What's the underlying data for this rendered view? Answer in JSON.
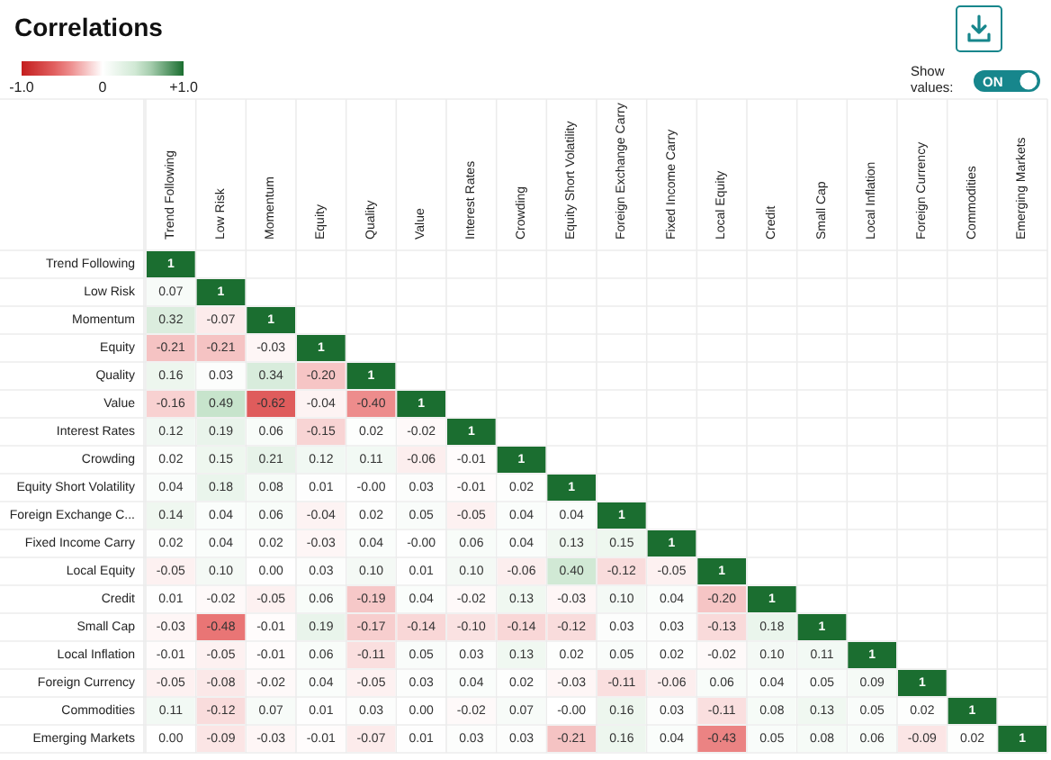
{
  "chart_data": {
    "type": "heatmap",
    "title": "Correlations",
    "categories": [
      "Trend Following",
      "Low Risk",
      "Momentum",
      "Equity",
      "Quality",
      "Value",
      "Interest Rates",
      "Crowding",
      "Equity Short Volatility",
      "Foreign Exchange Carry",
      "Fixed Income Carry",
      "Local Equity",
      "Credit",
      "Small Cap",
      "Local Inflation",
      "Foreign Currency",
      "Commodities",
      "Emerging Markets"
    ],
    "y_categories": [
      "Trend Following",
      "Low Risk",
      "Momentum",
      "Equity",
      "Quality",
      "Value",
      "Interest Rates",
      "Crowding",
      "Equity Short Volatility",
      "Foreign Exchange C...",
      "Fixed Income Carry",
      "Local Equity",
      "Credit",
      "Small Cap",
      "Local Inflation",
      "Foreign Currency",
      "Commodities",
      "Emerging Markets"
    ],
    "cells": [
      [
        1,
        null,
        null,
        null,
        null,
        null,
        null,
        null,
        null,
        null,
        null,
        null,
        null,
        null,
        null,
        null,
        null,
        null
      ],
      [
        0.07,
        1,
        null,
        null,
        null,
        null,
        null,
        null,
        null,
        null,
        null,
        null,
        null,
        null,
        null,
        null,
        null,
        null
      ],
      [
        0.32,
        -0.07,
        1,
        null,
        null,
        null,
        null,
        null,
        null,
        null,
        null,
        null,
        null,
        null,
        null,
        null,
        null,
        null
      ],
      [
        -0.21,
        -0.21,
        -0.03,
        1,
        null,
        null,
        null,
        null,
        null,
        null,
        null,
        null,
        null,
        null,
        null,
        null,
        null,
        null
      ],
      [
        0.16,
        0.03,
        0.34,
        -0.2,
        1,
        null,
        null,
        null,
        null,
        null,
        null,
        null,
        null,
        null,
        null,
        null,
        null,
        null
      ],
      [
        -0.16,
        0.49,
        -0.62,
        -0.04,
        -0.4,
        1,
        null,
        null,
        null,
        null,
        null,
        null,
        null,
        null,
        null,
        null,
        null,
        null
      ],
      [
        0.12,
        0.19,
        0.06,
        -0.15,
        0.02,
        -0.02,
        1,
        null,
        null,
        null,
        null,
        null,
        null,
        null,
        null,
        null,
        null,
        null
      ],
      [
        0.02,
        0.15,
        0.21,
        0.12,
        0.11,
        -0.06,
        -0.01,
        1,
        null,
        null,
        null,
        null,
        null,
        null,
        null,
        null,
        null,
        null
      ],
      [
        0.04,
        0.18,
        0.08,
        0.01,
        0,
        0.03,
        -0.01,
        0.02,
        1,
        null,
        null,
        null,
        null,
        null,
        null,
        null,
        null,
        null
      ],
      [
        0.14,
        0.04,
        0.06,
        -0.04,
        0.02,
        0.05,
        -0.05,
        0.04,
        0.04,
        1,
        null,
        null,
        null,
        null,
        null,
        null,
        null,
        null
      ],
      [
        0.02,
        0.04,
        0.02,
        -0.03,
        0.04,
        0,
        0.06,
        0.04,
        0.13,
        0.15,
        1,
        null,
        null,
        null,
        null,
        null,
        null,
        null
      ],
      [
        -0.05,
        0.1,
        0,
        0.03,
        0.1,
        0.01,
        0.1,
        -0.06,
        0.4,
        -0.12,
        -0.05,
        1,
        null,
        null,
        null,
        null,
        null,
        null
      ],
      [
        0.01,
        -0.02,
        -0.05,
        0.06,
        -0.19,
        0.04,
        -0.02,
        0.13,
        -0.03,
        0.1,
        0.04,
        -0.2,
        1,
        null,
        null,
        null,
        null,
        null
      ],
      [
        -0.03,
        -0.48,
        -0.01,
        0.19,
        -0.17,
        -0.14,
        -0.1,
        -0.14,
        -0.12,
        0.03,
        0.03,
        -0.13,
        0.18,
        1,
        null,
        null,
        null,
        null
      ],
      [
        -0.01,
        -0.05,
        -0.01,
        0.06,
        -0.11,
        0.05,
        0.03,
        0.13,
        0.02,
        0.05,
        0.02,
        -0.02,
        0.1,
        0.11,
        1,
        null,
        null,
        null
      ],
      [
        -0.05,
        -0.08,
        -0.02,
        0.04,
        -0.05,
        0.03,
        0.04,
        0.02,
        -0.03,
        -0.11,
        -0.06,
        0.06,
        0.04,
        0.05,
        0.09,
        1,
        null,
        null
      ],
      [
        0.11,
        -0.12,
        0.07,
        0.01,
        0.03,
        0,
        -0.02,
        0.07,
        0,
        0.16,
        0.03,
        -0.11,
        0.08,
        0.13,
        0.05,
        0.02,
        1,
        null
      ],
      [
        0,
        -0.09,
        -0.03,
        -0.01,
        -0.07,
        0.01,
        0.03,
        0.03,
        -0.21,
        0.16,
        0.04,
        -0.43,
        0.05,
        0.08,
        0.06,
        -0.09,
        0.02,
        1
      ]
    ],
    "cell_labels": [
      [
        "1",
        null,
        null,
        null,
        null,
        null,
        null,
        null,
        null,
        null,
        null,
        null,
        null,
        null,
        null,
        null,
        null,
        null
      ],
      [
        "0.07",
        "1",
        null,
        null,
        null,
        null,
        null,
        null,
        null,
        null,
        null,
        null,
        null,
        null,
        null,
        null,
        null,
        null
      ],
      [
        "0.32",
        "-0.07",
        "1",
        null,
        null,
        null,
        null,
        null,
        null,
        null,
        null,
        null,
        null,
        null,
        null,
        null,
        null,
        null
      ],
      [
        "-0.21",
        "-0.21",
        "-0.03",
        "1",
        null,
        null,
        null,
        null,
        null,
        null,
        null,
        null,
        null,
        null,
        null,
        null,
        null,
        null
      ],
      [
        "0.16",
        "0.03",
        "0.34",
        "-0.20",
        "1",
        null,
        null,
        null,
        null,
        null,
        null,
        null,
        null,
        null,
        null,
        null,
        null,
        null
      ],
      [
        "-0.16",
        "0.49",
        "-0.62",
        "-0.04",
        "-0.40",
        "1",
        null,
        null,
        null,
        null,
        null,
        null,
        null,
        null,
        null,
        null,
        null,
        null
      ],
      [
        "0.12",
        "0.19",
        "0.06",
        "-0.15",
        "0.02",
        "-0.02",
        "1",
        null,
        null,
        null,
        null,
        null,
        null,
        null,
        null,
        null,
        null,
        null
      ],
      [
        "0.02",
        "0.15",
        "0.21",
        "0.12",
        "0.11",
        "-0.06",
        "-0.01",
        "1",
        null,
        null,
        null,
        null,
        null,
        null,
        null,
        null,
        null,
        null
      ],
      [
        "0.04",
        "0.18",
        "0.08",
        "0.01",
        "-0.00",
        "0.03",
        "-0.01",
        "0.02",
        "1",
        null,
        null,
        null,
        null,
        null,
        null,
        null,
        null,
        null
      ],
      [
        "0.14",
        "0.04",
        "0.06",
        "-0.04",
        "0.02",
        "0.05",
        "-0.05",
        "0.04",
        "0.04",
        "1",
        null,
        null,
        null,
        null,
        null,
        null,
        null,
        null
      ],
      [
        "0.02",
        "0.04",
        "0.02",
        "-0.03",
        "0.04",
        "-0.00",
        "0.06",
        "0.04",
        "0.13",
        "0.15",
        "1",
        null,
        null,
        null,
        null,
        null,
        null,
        null
      ],
      [
        "-0.05",
        "0.10",
        "0.00",
        "0.03",
        "0.10",
        "0.01",
        "0.10",
        "-0.06",
        "0.40",
        "-0.12",
        "-0.05",
        "1",
        null,
        null,
        null,
        null,
        null,
        null
      ],
      [
        "0.01",
        "-0.02",
        "-0.05",
        "0.06",
        "-0.19",
        "0.04",
        "-0.02",
        "0.13",
        "-0.03",
        "0.10",
        "0.04",
        "-0.20",
        "1",
        null,
        null,
        null,
        null,
        null
      ],
      [
        "-0.03",
        "-0.48",
        "-0.01",
        "0.19",
        "-0.17",
        "-0.14",
        "-0.10",
        "-0.14",
        "-0.12",
        "0.03",
        "0.03",
        "-0.13",
        "0.18",
        "1",
        null,
        null,
        null,
        null
      ],
      [
        "-0.01",
        "-0.05",
        "-0.01",
        "0.06",
        "-0.11",
        "0.05",
        "0.03",
        "0.13",
        "0.02",
        "0.05",
        "0.02",
        "-0.02",
        "0.10",
        "0.11",
        "1",
        null,
        null,
        null
      ],
      [
        "-0.05",
        "-0.08",
        "-0.02",
        "0.04",
        "-0.05",
        "0.03",
        "0.04",
        "0.02",
        "-0.03",
        "-0.11",
        "-0.06",
        "0.06",
        "0.04",
        "0.05",
        "0.09",
        "1",
        null,
        null
      ],
      [
        "0.11",
        "-0.12",
        "0.07",
        "0.01",
        "0.03",
        "0.00",
        "-0.02",
        "0.07",
        "-0.00",
        "0.16",
        "0.03",
        "-0.11",
        "0.08",
        "0.13",
        "0.05",
        "0.02",
        "1",
        null
      ],
      [
        "0.00",
        "-0.09",
        "-0.03",
        "-0.01",
        "-0.07",
        "0.01",
        "0.03",
        "0.03",
        "-0.21",
        "0.16",
        "0.04",
        "-0.43",
        "0.05",
        "0.08",
        "0.06",
        "-0.09",
        "0.02",
        "1"
      ]
    ],
    "clim": [
      -1,
      1
    ],
    "cticks": [
      {
        "value": -1,
        "label": "-1.0"
      },
      0,
      {
        "value": 1,
        "label": "+1.0"
      }
    ],
    "annotations": [
      "Show values:",
      "ON"
    ]
  }
}
